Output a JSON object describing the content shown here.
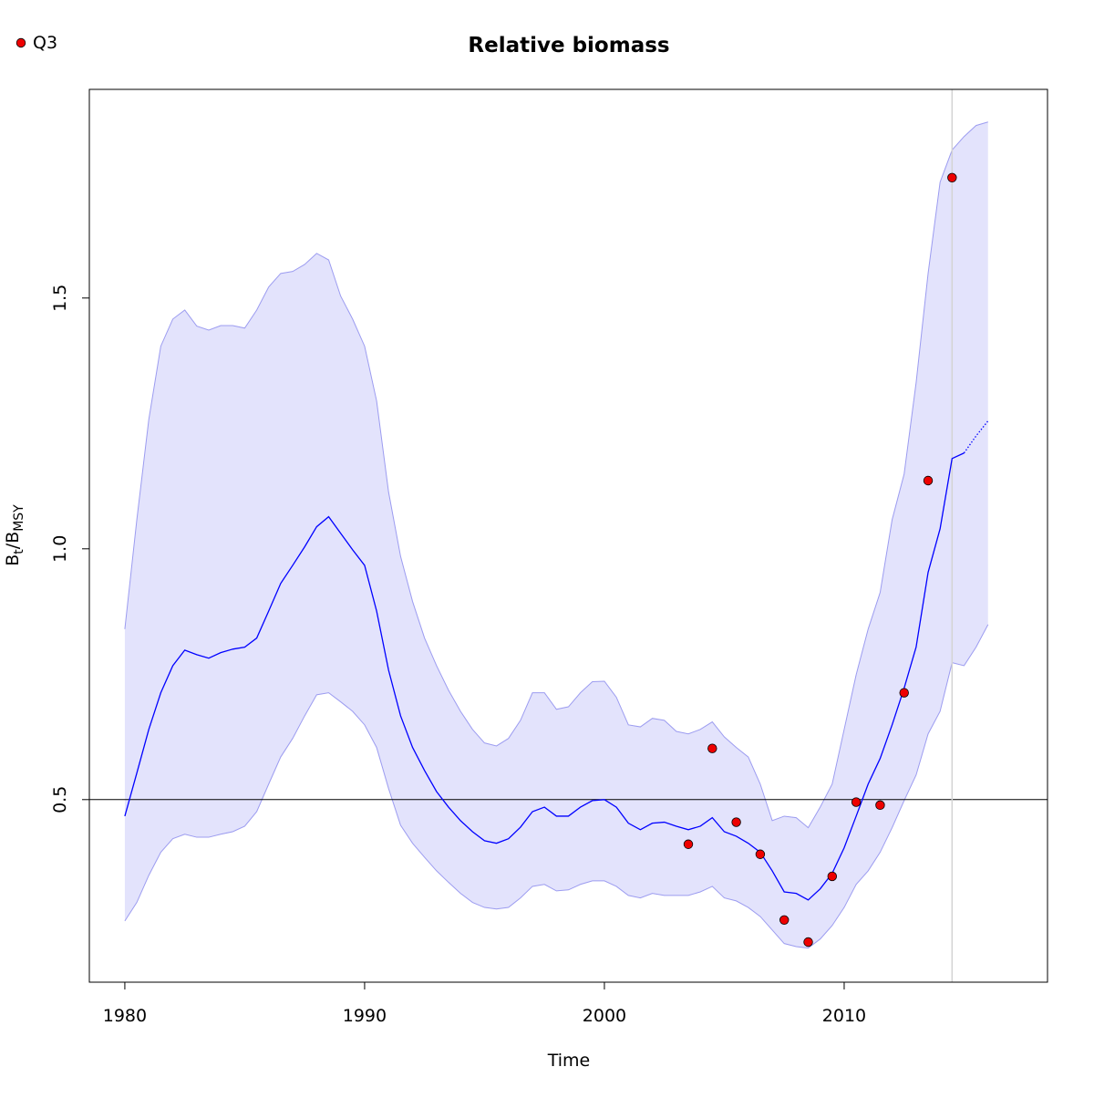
{
  "chart_data": {
    "type": "line",
    "title": "Relative biomass",
    "xlabel": "Time",
    "ylabel": [
      "B",
      "t",
      "/B",
      "MSY"
    ],
    "xlim": [
      1978.52,
      2018.48
    ],
    "ylim": [
      0.136,
      1.916
    ],
    "xticks": [
      1980,
      1990,
      2000,
      2010
    ],
    "yticks": [
      0.5,
      {
        "value": 1,
        "label": "1.0"
      },
      1.5
    ],
    "x": [
      1980,
      1980.5,
      1981,
      1981.5,
      1982,
      1982.5,
      1983,
      1983.5,
      1984,
      1984.5,
      1985,
      1985.5,
      1986,
      1986.5,
      1987,
      1987.5,
      1988,
      1988.5,
      1989,
      1989.5,
      1990,
      1990.5,
      1991,
      1991.5,
      1992,
      1992.5,
      1993,
      1993.5,
      1994,
      1994.5,
      1995,
      1995.5,
      1996,
      1996.5,
      1997,
      1997.5,
      1998,
      1998.5,
      1999,
      1999.5,
      2000,
      2000.5,
      2001,
      2001.5,
      2002,
      2002.5,
      2003,
      2003.5,
      2004,
      2004.5,
      2005,
      2005.5,
      2006,
      2006.5,
      2007,
      2007.5,
      2008,
      2008.5,
      2009,
      2009.5,
      2010,
      2010.5,
      2011,
      2011.5,
      2012,
      2012.5,
      2013,
      2013.5,
      2014,
      2014.5,
      2015,
      2015.5,
      2016
    ],
    "band": {
      "color": "#e3e3fc",
      "edge_color": "#9c9cf0",
      "upper": [
        0.84,
        1.058,
        1.258,
        1.404,
        1.458,
        1.476,
        1.444,
        1.436,
        1.445,
        1.445,
        1.44,
        1.476,
        1.522,
        1.549,
        1.553,
        1.567,
        1.589,
        1.576,
        1.504,
        1.458,
        1.404,
        1.295,
        1.113,
        0.985,
        0.895,
        0.822,
        0.767,
        0.718,
        0.676,
        0.64,
        0.613,
        0.607,
        0.622,
        0.658,
        0.713,
        0.713,
        0.68,
        0.685,
        0.713,
        0.735,
        0.736,
        0.704,
        0.649,
        0.645,
        0.662,
        0.658,
        0.636,
        0.631,
        0.64,
        0.655,
        0.625,
        0.604,
        0.585,
        0.531,
        0.458,
        0.467,
        0.464,
        0.444,
        0.485,
        0.531,
        0.64,
        0.749,
        0.84,
        0.913,
        1.058,
        1.149,
        1.331,
        1.549,
        1.731,
        1.795,
        1.822,
        1.844,
        1.851
      ],
      "lower": [
        0.258,
        0.295,
        0.349,
        0.395,
        0.422,
        0.431,
        0.425,
        0.425,
        0.431,
        0.436,
        0.447,
        0.476,
        0.531,
        0.585,
        0.622,
        0.667,
        0.709,
        0.713,
        0.695,
        0.676,
        0.649,
        0.604,
        0.522,
        0.449,
        0.413,
        0.385,
        0.358,
        0.335,
        0.313,
        0.295,
        0.285,
        0.282,
        0.285,
        0.304,
        0.327,
        0.331,
        0.318,
        0.32,
        0.331,
        0.338,
        0.338,
        0.327,
        0.309,
        0.304,
        0.313,
        0.309,
        0.309,
        0.309,
        0.316,
        0.327,
        0.304,
        0.298,
        0.285,
        0.267,
        0.24,
        0.213,
        0.207,
        0.204,
        0.222,
        0.249,
        0.285,
        0.331,
        0.358,
        0.395,
        0.444,
        0.498,
        0.549,
        0.631,
        0.676,
        0.773,
        0.767,
        0.804,
        0.849
      ]
    },
    "estimate": {
      "color": "#0000ff",
      "values": [
        0.467,
        0.553,
        0.64,
        0.713,
        0.767,
        0.798,
        0.789,
        0.782,
        0.793,
        0.8,
        0.804,
        0.822,
        0.876,
        0.931,
        0.967,
        1.004,
        1.044,
        1.064,
        1.031,
        0.998,
        0.967,
        0.876,
        0.758,
        0.667,
        0.604,
        0.558,
        0.516,
        0.485,
        0.458,
        0.436,
        0.418,
        0.413,
        0.422,
        0.445,
        0.476,
        0.485,
        0.467,
        0.467,
        0.485,
        0.498,
        0.5,
        0.485,
        0.453,
        0.44,
        0.453,
        0.455,
        0.447,
        0.44,
        0.447,
        0.464,
        0.436,
        0.427,
        0.413,
        0.395,
        0.358,
        0.316,
        0.313,
        0.3,
        0.322,
        0.353,
        0.404,
        0.467,
        0.531,
        0.582,
        0.649,
        0.722,
        0.804,
        0.953,
        1.04,
        1.18,
        1.191,
        null,
        null
      ]
    },
    "forecast": {
      "color": "#0000ff",
      "values": [
        null,
        null,
        null,
        null,
        null,
        null,
        null,
        null,
        null,
        null,
        null,
        null,
        null,
        null,
        null,
        null,
        null,
        null,
        null,
        null,
        null,
        null,
        null,
        null,
        null,
        null,
        null,
        null,
        null,
        null,
        null,
        null,
        null,
        null,
        null,
        null,
        null,
        null,
        null,
        null,
        null,
        null,
        null,
        null,
        null,
        null,
        null,
        null,
        null,
        null,
        null,
        null,
        null,
        null,
        null,
        null,
        null,
        null,
        null,
        null,
        null,
        null,
        null,
        null,
        null,
        null,
        null,
        null,
        null,
        null,
        1.191,
        1.225,
        1.255
      ]
    },
    "observations": {
      "name": "Q3",
      "color": "#ee0000",
      "x": [
        2003.5,
        2004.5,
        2005.5,
        2006.5,
        2007.5,
        2008.5,
        2009.5,
        2010.5,
        2011.5,
        2012.5,
        2013.5,
        2014.5
      ],
      "values": [
        0.411,
        0.602,
        0.455,
        0.391,
        0.26,
        0.216,
        0.347,
        0.495,
        0.489,
        0.713,
        1.136,
        1.74
      ]
    },
    "hline": 0.5,
    "vline": 2014.5,
    "legend": "top-left"
  }
}
